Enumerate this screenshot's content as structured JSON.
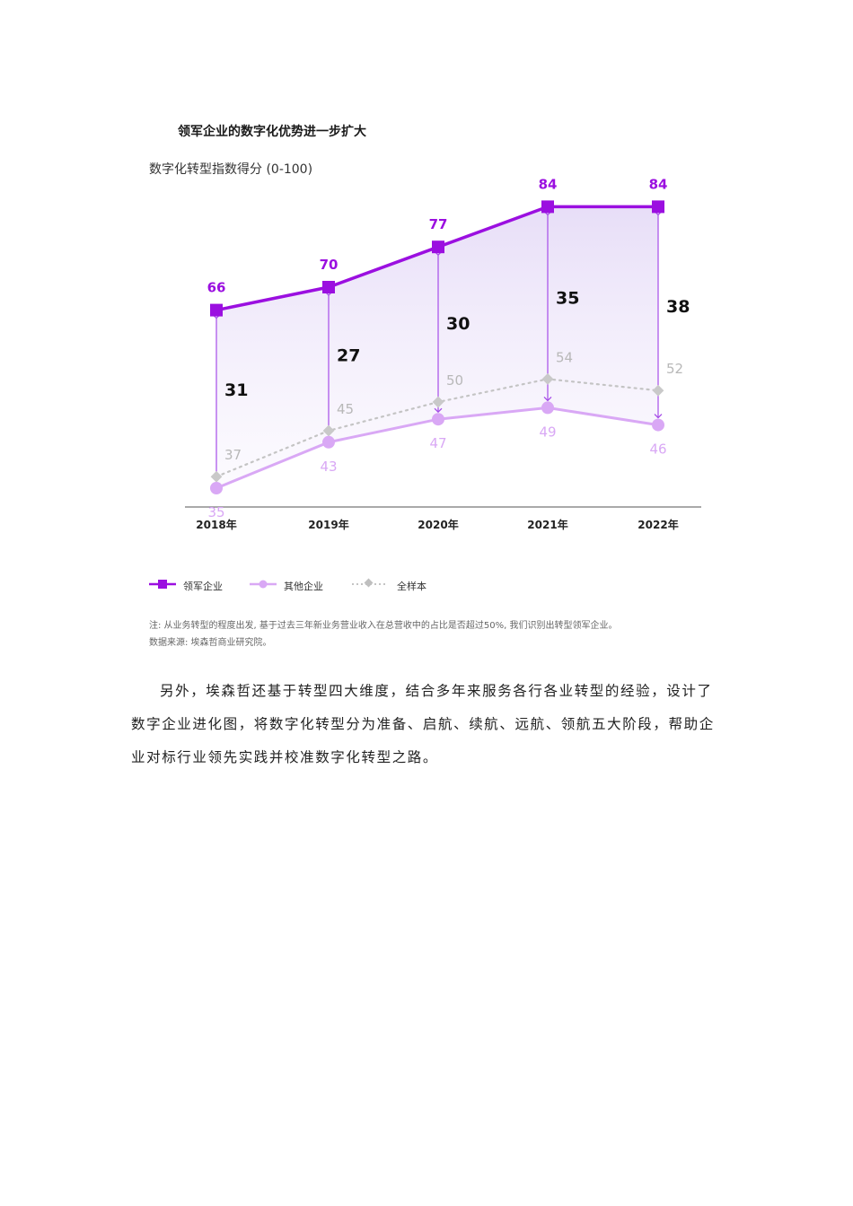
{
  "chart_data": {
    "type": "line",
    "title": "领军企业的数字化优势进一步扩大",
    "subtitle": "数字化转型指数得分 (0-100)",
    "categories": [
      "2018年",
      "2019年",
      "2020年",
      "2021年",
      "2022年"
    ],
    "series": [
      {
        "name": "领军企业",
        "values": [
          66,
          70,
          77,
          84,
          84
        ],
        "color": "#9b0fe0",
        "marker": "square"
      },
      {
        "name": "其他企业",
        "values": [
          35,
          43,
          47,
          49,
          46
        ],
        "color": "#d9a8f5",
        "marker": "circle"
      },
      {
        "name": "全样本",
        "values": [
          37,
          45,
          50,
          54,
          52
        ],
        "color": "#c4c4c4",
        "marker": "diamond",
        "dash": true
      }
    ],
    "gaps": [
      31,
      27,
      30,
      35,
      38
    ],
    "ylim": [
      25,
      90
    ],
    "grid": false,
    "legend_position": "bottom-left"
  },
  "note": "注: 从业务转型的程度出发, 基于过去三年新业务营业收入在总营收中的占比是否超过50%, 我们识别出转型领军企业。",
  "source": "数据来源: 埃森哲商业研究院。",
  "paragraph": "另外，埃森哲还基于转型四大维度，结合多年来服务各行各业转型的经验，设计了数字企业进化图，将数字化转型分为准备、启航、续航、远航、领航五大阶段，帮助企业对标行业领先实践并校准数字化转型之路。"
}
